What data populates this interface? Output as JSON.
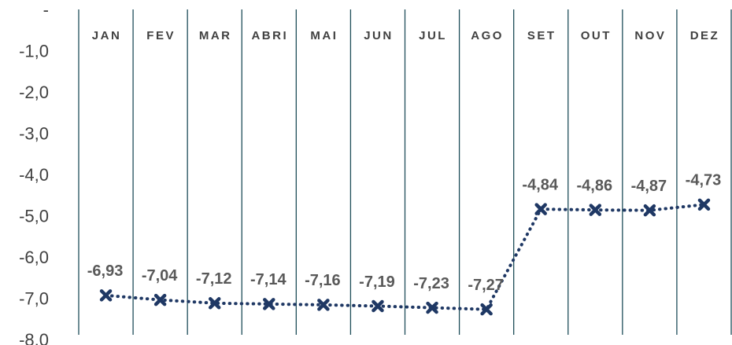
{
  "chart_data": {
    "type": "line",
    "categories": [
      "JAN",
      "FEV",
      "MAR",
      "ABRI",
      "MAI",
      "JUN",
      "JUL",
      "AGO",
      "SET",
      "OUT",
      "NOV",
      "DEZ"
    ],
    "series": [
      {
        "name": null,
        "color": "#1f3864",
        "values": [
          -6.93,
          -7.04,
          -7.12,
          -7.14,
          -7.16,
          -7.19,
          -7.23,
          -7.27,
          -4.84,
          -4.86,
          -4.87,
          -4.73
        ],
        "value_labels": [
          "-6,93",
          "-7,04",
          "-7,12",
          "-7,14",
          "-7,16",
          "-7,19",
          "-7,23",
          "-7,27",
          "-4,84",
          "-4,86",
          "-4,87",
          "-4,73"
        ]
      }
    ],
    "ylim": [
      0,
      -8
    ],
    "yticks": [
      {
        "value": 0,
        "label": "-"
      },
      {
        "value": -1,
        "label": "-1,0"
      },
      {
        "value": -2,
        "label": "-2,0"
      },
      {
        "value": -3,
        "label": "-3,0"
      },
      {
        "value": -4,
        "label": "-4,0"
      },
      {
        "value": -5,
        "label": "-5,0"
      },
      {
        "value": -6,
        "label": "-6,0"
      },
      {
        "value": -7,
        "label": "-7,0"
      },
      {
        "value": -8,
        "label": "-8,0"
      }
    ]
  }
}
